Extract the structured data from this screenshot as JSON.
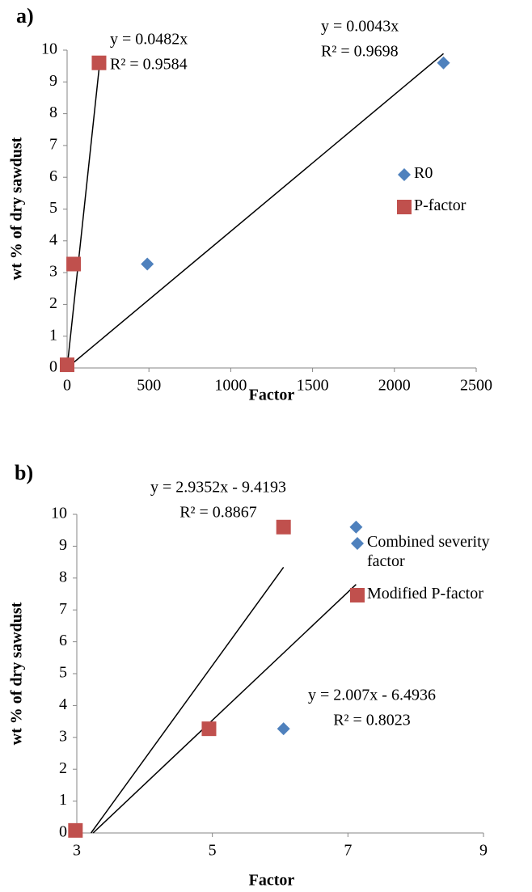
{
  "chart_data": [
    {
      "type": "scatter",
      "panel_label": "a)",
      "x_label": "Factor",
      "y_label": "wt % of dry sawdust",
      "xlim": [
        0,
        2500
      ],
      "xticks": [
        0,
        500,
        1000,
        1500,
        2000,
        2500
      ],
      "ylim": [
        0,
        10
      ],
      "yticks": [
        0,
        1,
        2,
        3,
        4,
        5,
        6,
        7,
        8,
        9,
        10
      ],
      "series": [
        {
          "name": "R0",
          "color": "#4f81bd",
          "marker": "diamond",
          "x": [
            0,
            490,
            2300
          ],
          "values": [
            0.1,
            3.27,
            9.6
          ]
        },
        {
          "name": "P-factor",
          "color": "#c0504d",
          "marker": "square",
          "x": [
            0,
            40,
            195
          ],
          "values": [
            0.1,
            3.27,
            9.6
          ]
        }
      ],
      "trendlines": [
        {
          "x": [
            0,
            200
          ],
          "values": [
            0,
            9.64
          ]
        },
        {
          "x": [
            0,
            2300
          ],
          "values": [
            0,
            9.89
          ]
        }
      ],
      "annotations": [
        [
          "y = 0.0482x",
          "R² = 0.9584"
        ],
        [
          "y = 0.0043x",
          "R² = 0.9698"
        ]
      ]
    },
    {
      "type": "scatter",
      "panel_label": "b)",
      "x_label": "Factor",
      "y_label": "wt % of dry sawdust",
      "xlim": [
        3,
        9
      ],
      "xticks": [
        3,
        5,
        7,
        9
      ],
      "ylim": [
        0,
        10
      ],
      "yticks": [
        0,
        1,
        2,
        3,
        4,
        5,
        6,
        7,
        8,
        9,
        10
      ],
      "series": [
        {
          "name": "Combined severity factor",
          "color": "#4f81bd",
          "marker": "diamond",
          "x": [
            2.98,
            6.05,
            7.12
          ],
          "values": [
            0.08,
            3.27,
            9.6
          ]
        },
        {
          "name": "Modified P-factor",
          "color": "#c0504d",
          "marker": "square",
          "x": [
            2.98,
            4.95,
            6.05
          ],
          "values": [
            0.08,
            3.27,
            9.6
          ]
        }
      ],
      "trendlines": [
        {
          "x": [
            3.21,
            6.05
          ],
          "values": [
            0,
            8.34
          ]
        },
        {
          "x": [
            3.24,
            7.12
          ],
          "values": [
            0,
            7.8
          ]
        }
      ],
      "annotations": [
        [
          "y = 2.9352x - 9.4193",
          "R² = 0.8867"
        ],
        [
          "y = 2.007x - 6.4936",
          "R² = 0.8023"
        ]
      ]
    }
  ]
}
